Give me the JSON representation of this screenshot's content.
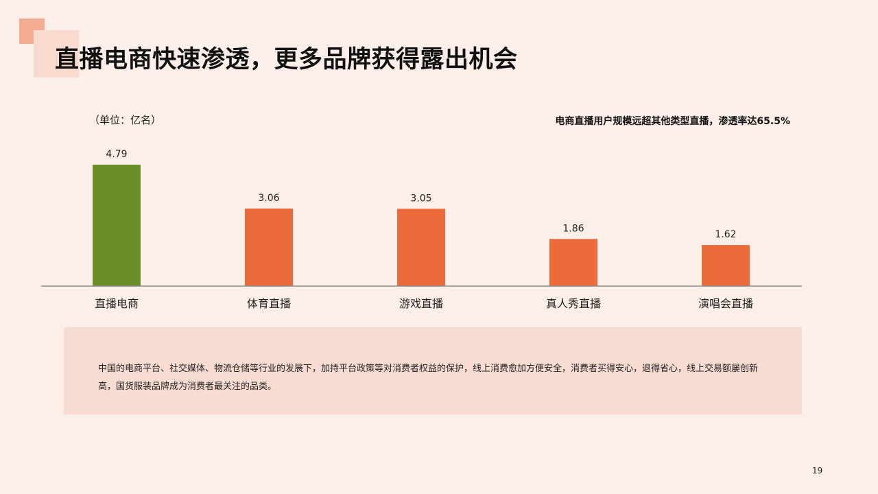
{
  "slide": {
    "title": "直播电商快速渗透，更多品牌获得露出机会",
    "unit_label": "（单位：亿名）",
    "chart_note": "电商直播用户规模远超其他类型直播，渗透率达65.5%",
    "summary": "中国的电商平台、社交媒体、物流仓储等行业的发展下，加持平台政策等对消费者权益的保护，线上消费愈加方便安全，消费者买得安心，退得省心，线上交易额屡创新高，国货服装品牌成为消费者最关注的品类。",
    "page_number": "19"
  },
  "colors": {
    "background": "#fcefe9",
    "highlight_bar": "#6b8e29",
    "bar": "#eb6b3a",
    "summary_box": "#f9dcd1",
    "deco_dark": "#f5ab92",
    "deco_light": "#f8dacf"
  },
  "chart_data": {
    "type": "bar",
    "categories": [
      "直播电商",
      "体育直播",
      "游戏直播",
      "真人秀直播",
      "演唱会直播"
    ],
    "values": [
      4.79,
      3.06,
      3.05,
      1.86,
      1.62
    ],
    "value_labels": [
      "4.79",
      "3.06",
      "3.05",
      "1.86",
      "1.62"
    ],
    "highlight_index": 0,
    "ylim": [
      0,
      4.79
    ],
    "grid": false,
    "legend": "none"
  }
}
